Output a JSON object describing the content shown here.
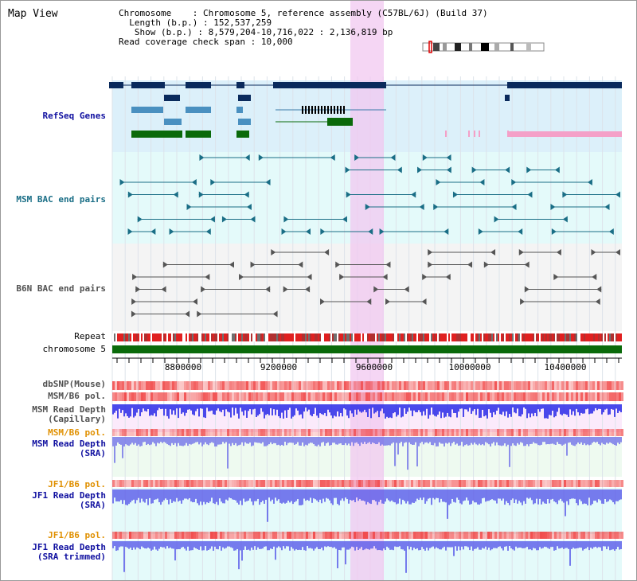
{
  "window": {
    "title": "Map View"
  },
  "info": {
    "chromosome_label": "Chromosome",
    "chromosome_value": "Chromosome 5, reference assembly (C57BL/6J) (Build 37)",
    "length_label": "Length (b.p.)",
    "length_value": "152,537,259",
    "show_label": "Show (b.p.)",
    "show_value": "8,579,204-10,716,022 : 2,136,819 bp",
    "span_label": "Read coverage check span",
    "span_value": "10,000"
  },
  "tracks": {
    "refseq": "RefSeq Genes",
    "msm_bac": "MSM BAC end pairs",
    "b6n_bac": "B6N BAC end pairs",
    "repeat": "Repeat",
    "chromosome": "chromosome 5",
    "dbsnp": "dbSNP(Mouse)",
    "msm_b6_pol_1": "MSM/B6 pol.",
    "msm_depth_cap_1": "MSM Read Depth",
    "msm_depth_cap_2": "(Capillary)",
    "msm_b6_pol_2": "MSM/B6 pol.",
    "msm_depth_sra_1": "MSM Read Depth",
    "msm_depth_sra_2": "(SRA)",
    "jf1_b6_pol_1": "JF1/B6 pol.",
    "jf1_depth_sra_1": "JF1 Read Depth",
    "jf1_depth_sra_2": "(SRA)",
    "jf1_b6_pol_2": "JF1/B6 pol.",
    "jf1_depth_trim_1": "JF1 Read Depth",
    "jf1_depth_trim_2": "(SRA trimmed)"
  },
  "axis": {
    "ticks": [
      "8800000",
      "9200000",
      "9600000",
      "10000000",
      "10400000"
    ]
  },
  "colors": {
    "refseq_dark": "#0a2a5c",
    "refseq_mid": "#4a90c0",
    "refseq_green": "#0a6a0a",
    "msm_bac": "#1a6e86",
    "b6n_bac": "#555555",
    "highlight": "#f2c8f0",
    "pol_red": "#f03a3a",
    "depth_blue": "#2a2ae8",
    "label_blue": "#1010a0",
    "label_teal": "#1a6e86",
    "label_orange": "#e09000",
    "label_grey": "#505050"
  }
}
